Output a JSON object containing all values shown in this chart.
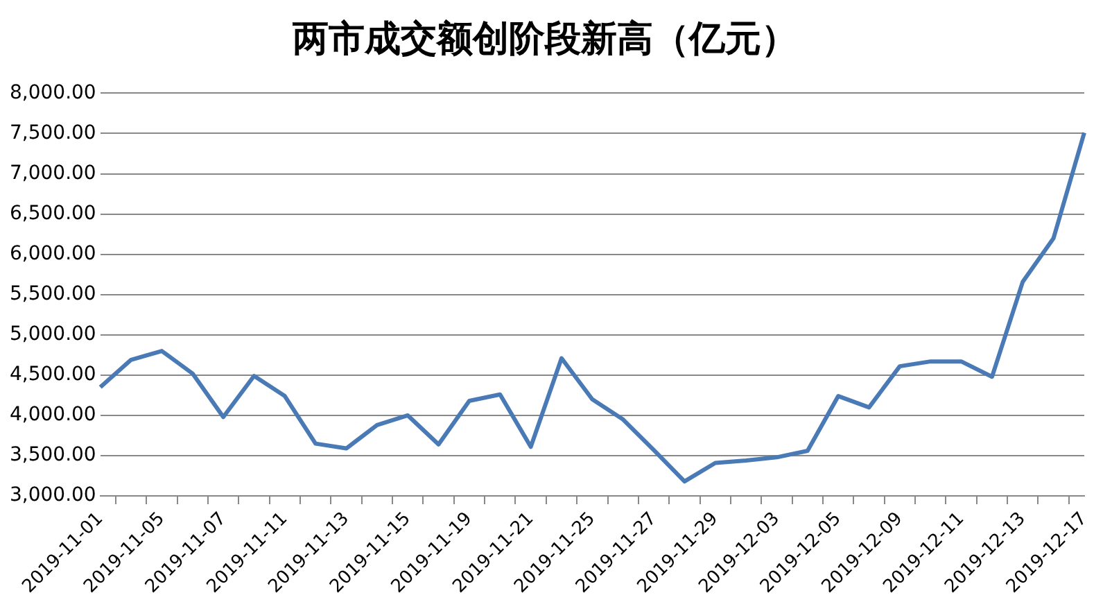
{
  "chart_data": {
    "type": "line",
    "title": "两市成交额创阶段新高（亿元）",
    "categories": [
      "2019-11-01",
      null,
      "2019-11-05",
      null,
      "2019-11-07",
      null,
      "2019-11-11",
      null,
      "2019-11-13",
      null,
      "2019-11-15",
      null,
      "2019-11-19",
      null,
      "2019-11-21",
      null,
      "2019-11-25",
      null,
      "2019-11-27",
      null,
      "2019-11-29",
      null,
      "2019-12-03",
      null,
      "2019-12-05",
      null,
      "2019-12-09",
      null,
      "2019-12-11",
      null,
      "2019-12-13",
      null,
      "2019-12-17"
    ],
    "series": [
      {
        "color": "#4a7ab5",
        "values": [
          4350,
          4690,
          4800,
          4520,
          3980,
          4490,
          4240,
          3650,
          3590,
          3880,
          4000,
          3640,
          4180,
          4260,
          3610,
          4710,
          4200,
          3950,
          3570,
          3180,
          3410,
          3440,
          3480,
          3560,
          4240,
          4100,
          4610,
          4670,
          4670,
          4480,
          5660,
          6200,
          7510
        ]
      }
    ],
    "ylim": [
      3000,
      8000
    ],
    "yticks": [
      {
        "value": 3000,
        "label": "3,000.00"
      },
      {
        "value": 3500,
        "label": "3,500.00"
      },
      {
        "value": 4000,
        "label": "4,000.00"
      },
      {
        "value": 4500,
        "label": "4,500.00"
      },
      {
        "value": 5000,
        "label": "5,000.00"
      },
      {
        "value": 5500,
        "label": "5,500.00"
      },
      {
        "value": 6000,
        "label": "6,000.00"
      },
      {
        "value": 6500,
        "label": "6,500.00"
      },
      {
        "value": 7000,
        "label": "7,000.00"
      },
      {
        "value": 7500,
        "label": "7,500.00"
      },
      {
        "value": 8000,
        "label": "8,000.00"
      }
    ],
    "grid": "y",
    "legend": false,
    "marker": "none",
    "line_style": "solid"
  }
}
